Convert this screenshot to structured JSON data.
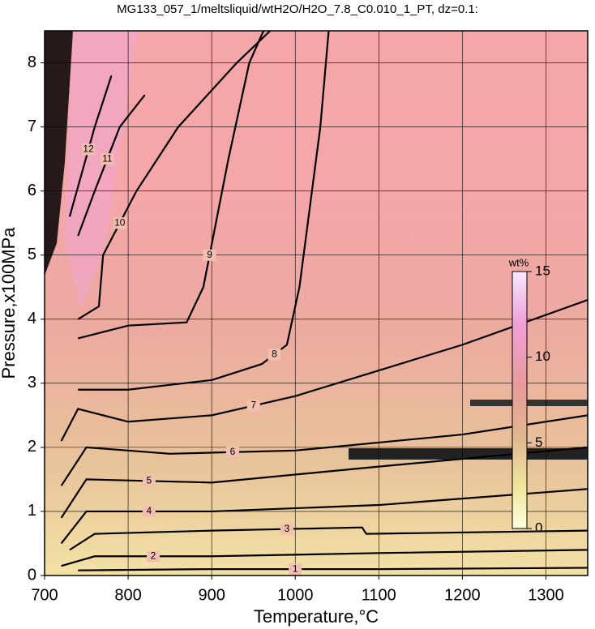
{
  "chart_data": {
    "type": "contour",
    "title": "MG133_057_1/meltsliquid/wtH2O/H2O_7.8_C0.010_1_PT, dz=0.1:",
    "x_label": "Temperature,°C",
    "y_label": "Pressure,x100MPa",
    "xlim": [
      700,
      1350
    ],
    "ylim": [
      0,
      8.5
    ],
    "xticks": [
      700,
      800,
      900,
      1000,
      1100,
      1200,
      1300
    ],
    "yticks": [
      0,
      1,
      2,
      3,
      4,
      5,
      6,
      7,
      8
    ],
    "grid": true,
    "colorbar": {
      "label": "wt%",
      "clim": [
        0,
        15
      ],
      "ticks": [
        0,
        5,
        10,
        15
      ]
    },
    "series": [
      {
        "name": "1",
        "x": [
          740,
          900,
          1100,
          1350
        ],
        "y": [
          0.08,
          0.1,
          0.1,
          0.12
        ]
      },
      {
        "name": "2",
        "x": [
          720,
          760,
          900,
          1100,
          1350
        ],
        "y": [
          0.15,
          0.3,
          0.3,
          0.35,
          0.4
        ]
      },
      {
        "name": "3",
        "x": [
          730,
          760,
          900,
          1080,
          1085,
          1350
        ],
        "y": [
          0.4,
          0.65,
          0.7,
          0.75,
          0.65,
          0.7
        ]
      },
      {
        "name": "4",
        "x": [
          720,
          750,
          900,
          1100,
          1350
        ],
        "y": [
          0.5,
          1.0,
          1.0,
          1.1,
          1.35
        ]
      },
      {
        "name": "5",
        "x": [
          720,
          750,
          900,
          1100,
          1350
        ],
        "y": [
          0.9,
          1.5,
          1.45,
          1.7,
          2.0
        ]
      },
      {
        "name": "6",
        "x": [
          720,
          750,
          850,
          1000,
          1200,
          1350
        ],
        "y": [
          1.4,
          2.0,
          1.9,
          1.95,
          2.2,
          2.5
        ]
      },
      {
        "name": "7",
        "x": [
          720,
          740,
          800,
          900,
          1000,
          1100,
          1200,
          1350
        ],
        "y": [
          2.1,
          2.6,
          2.4,
          2.5,
          2.8,
          3.2,
          3.6,
          4.3
        ]
      },
      {
        "name": "8",
        "x": [
          740,
          800,
          900,
          960,
          990,
          1005,
          1015,
          1030,
          1040
        ],
        "y": [
          2.9,
          2.9,
          3.05,
          3.3,
          3.6,
          4.5,
          5.5,
          7.0,
          8.5
        ]
      },
      {
        "name": "9",
        "x": [
          740,
          800,
          870,
          890,
          905,
          920,
          945,
          962
        ],
        "y": [
          3.7,
          3.9,
          3.95,
          4.5,
          5.5,
          6.5,
          8.0,
          8.5
        ]
      },
      {
        "name": "10",
        "x": [
          740,
          765,
          770,
          810,
          860,
          930,
          970
        ],
        "y": [
          4.0,
          4.2,
          5.0,
          6.0,
          7.0,
          8.0,
          8.5
        ]
      },
      {
        "name": "11",
        "x": [
          740,
          760,
          790,
          820
        ],
        "y": [
          5.3,
          6.0,
          7.0,
          7.5
        ]
      },
      {
        "name": "12",
        "x": [
          730,
          745,
          760,
          780
        ],
        "y": [
          5.6,
          6.3,
          7.0,
          7.8
        ]
      }
    ]
  }
}
